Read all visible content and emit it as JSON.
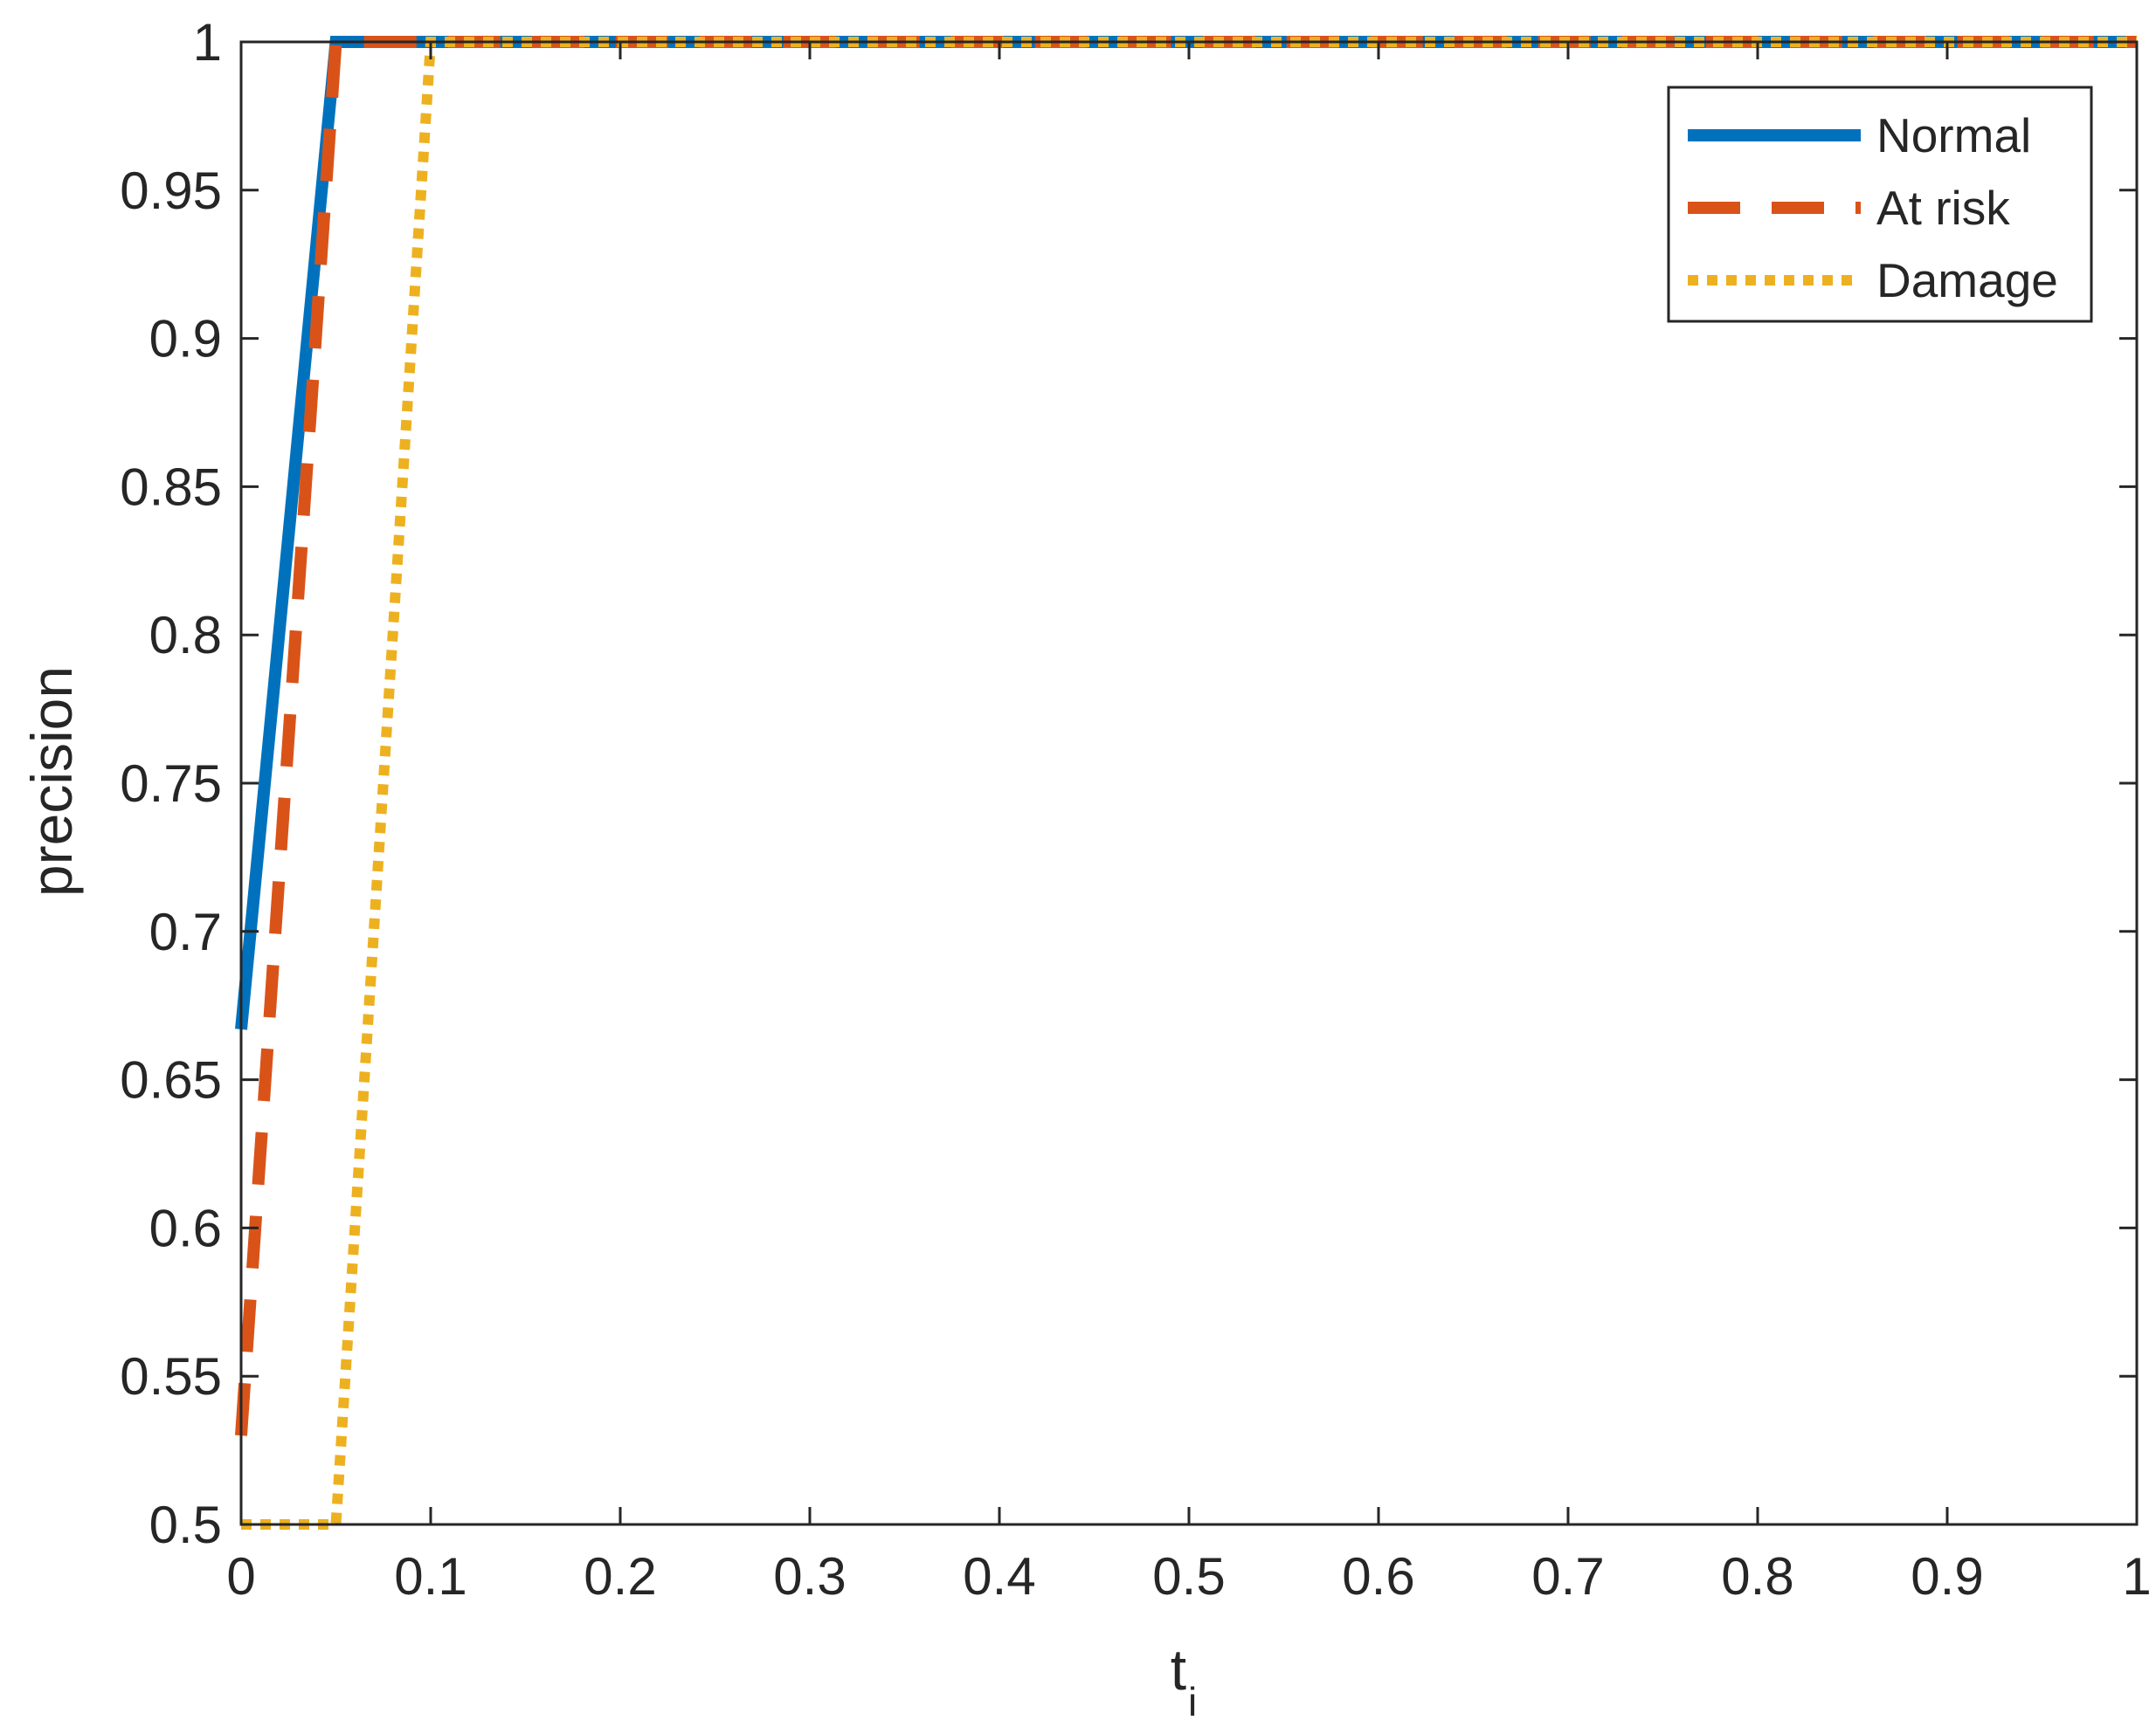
{
  "chart_data": {
    "type": "line",
    "title": "",
    "xlabel": "t",
    "xlabel_subscript": "i",
    "ylabel": "precision",
    "xlim": [
      0,
      1
    ],
    "ylim": [
      0.5,
      1
    ],
    "xticks": [
      0,
      0.1,
      0.2,
      0.3,
      0.4,
      0.5,
      0.6,
      0.7,
      0.8,
      0.9,
      1
    ],
    "xtick_labels": [
      "0",
      "0.1",
      "0.2",
      "0.3",
      "0.4",
      "0.5",
      "0.6",
      "0.7",
      "0.8",
      "0.9",
      "1"
    ],
    "yticks": [
      0.5,
      0.55,
      0.6,
      0.65,
      0.7,
      0.75,
      0.8,
      0.85,
      0.9,
      0.95,
      1
    ],
    "ytick_labels": [
      "0.5",
      "0.55",
      "0.6",
      "0.65",
      "0.7",
      "0.75",
      "0.8",
      "0.85",
      "0.9",
      "0.95",
      "1"
    ],
    "grid": false,
    "legend_position": "top-right",
    "series": [
      {
        "name": "Normal",
        "color": "#0072BD",
        "style": "solid",
        "x": [
          0,
          0.05,
          1
        ],
        "y": [
          0.667,
          1,
          1
        ]
      },
      {
        "name": "At risk",
        "color": "#D95319",
        "style": "dashed",
        "x": [
          0,
          0.05,
          1
        ],
        "y": [
          0.53,
          1,
          1
        ]
      },
      {
        "name": "Damage",
        "color": "#EDB120",
        "style": "dotted",
        "x": [
          0,
          0.05,
          0.1,
          1
        ],
        "y": [
          0.5,
          0.5,
          1,
          1
        ]
      }
    ]
  }
}
